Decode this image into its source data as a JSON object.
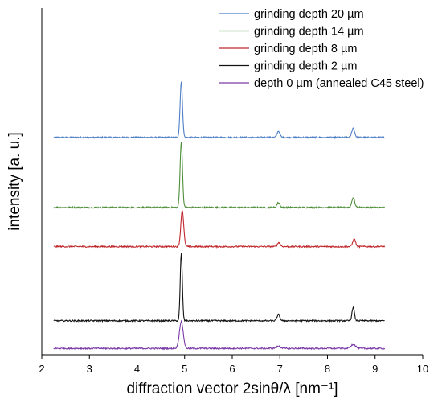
{
  "chart_data": {
    "type": "line",
    "xlabel": "diffraction  vector 2sinθ/λ [nm⁻¹]",
    "ylabel": "intensity [a. u.]",
    "xlim": [
      2,
      10
    ],
    "xticks": [
      "2",
      "3",
      "4",
      "5",
      "6",
      "7",
      "8",
      "9",
      "10"
    ],
    "yticks_shown": false,
    "grid": false,
    "legend_position": "top-right",
    "x_range_of_data": [
      2.25,
      9.2
    ],
    "series": [
      {
        "name": "grinding depth 20 µm",
        "color": "#4f7fc6",
        "baseline": 0.627,
        "peaks": [
          {
            "x": 4.93,
            "height": 0.16,
            "width": 0.025
          },
          {
            "x": 6.97,
            "height": 0.018,
            "width": 0.03
          },
          {
            "x": 8.54,
            "height": 0.027,
            "width": 0.03
          }
        ]
      },
      {
        "name": "grinding depth 14 µm",
        "color": "#4e8f3a",
        "baseline": 0.425,
        "peaks": [
          {
            "x": 4.93,
            "height": 0.19,
            "width": 0.025
          },
          {
            "x": 6.97,
            "height": 0.014,
            "width": 0.03
          },
          {
            "x": 8.54,
            "height": 0.028,
            "width": 0.03
          }
        ]
      },
      {
        "name": "grinding depth 8 µm",
        "color": "#c0282d",
        "baseline": 0.312,
        "peaks": [
          {
            "x": 4.95,
            "height": 0.105,
            "width": 0.03
          },
          {
            "x": 6.98,
            "height": 0.012,
            "width": 0.03
          },
          {
            "x": 8.56,
            "height": 0.022,
            "width": 0.03
          }
        ]
      },
      {
        "name": "grinding depth 2 µm",
        "color": "#111111",
        "baseline": 0.098,
        "peaks": [
          {
            "x": 4.93,
            "height": 0.195,
            "width": 0.022
          },
          {
            "x": 6.97,
            "height": 0.018,
            "width": 0.03
          },
          {
            "x": 8.54,
            "height": 0.039,
            "width": 0.025
          }
        ]
      },
      {
        "name": "depth 0 µm (annealed C45 steel)",
        "color": "#7a3aa8",
        "baseline": 0.018,
        "peaks": [
          {
            "x": 4.93,
            "height": 0.078,
            "width": 0.04
          },
          {
            "x": 6.97,
            "height": 0.006,
            "width": 0.05
          },
          {
            "x": 8.54,
            "height": 0.012,
            "width": 0.05
          }
        ]
      }
    ]
  }
}
